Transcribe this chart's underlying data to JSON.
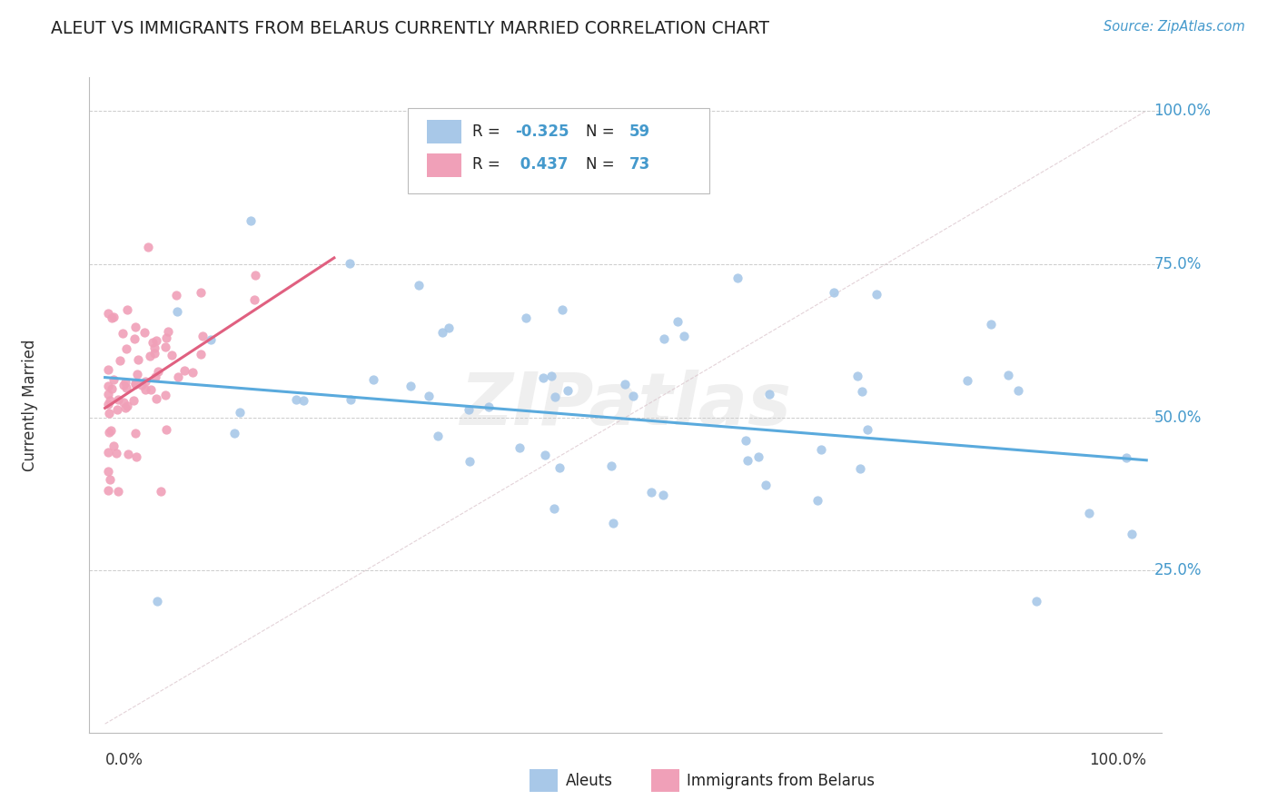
{
  "title": "ALEUT VS IMMIGRANTS FROM BELARUS CURRENTLY MARRIED CORRELATION CHART",
  "source": "Source: ZipAtlas.com",
  "ylabel": "Currently Married",
  "blue_color": "#a8c8e8",
  "pink_color": "#f0a0b8",
  "blue_line_color": "#5aaadd",
  "pink_line_color": "#e06080",
  "diagonal_color": "#d8c0c8",
  "watermark": "ZIPatlas",
  "background_color": "#ffffff",
  "grid_color": "#cccccc",
  "title_color": "#222222",
  "source_color": "#4499cc",
  "axis_label_color": "#4499cc",
  "text_color": "#333333",
  "aleut_R": -0.325,
  "aleut_N": 59,
  "belarus_R": 0.437,
  "belarus_N": 73
}
